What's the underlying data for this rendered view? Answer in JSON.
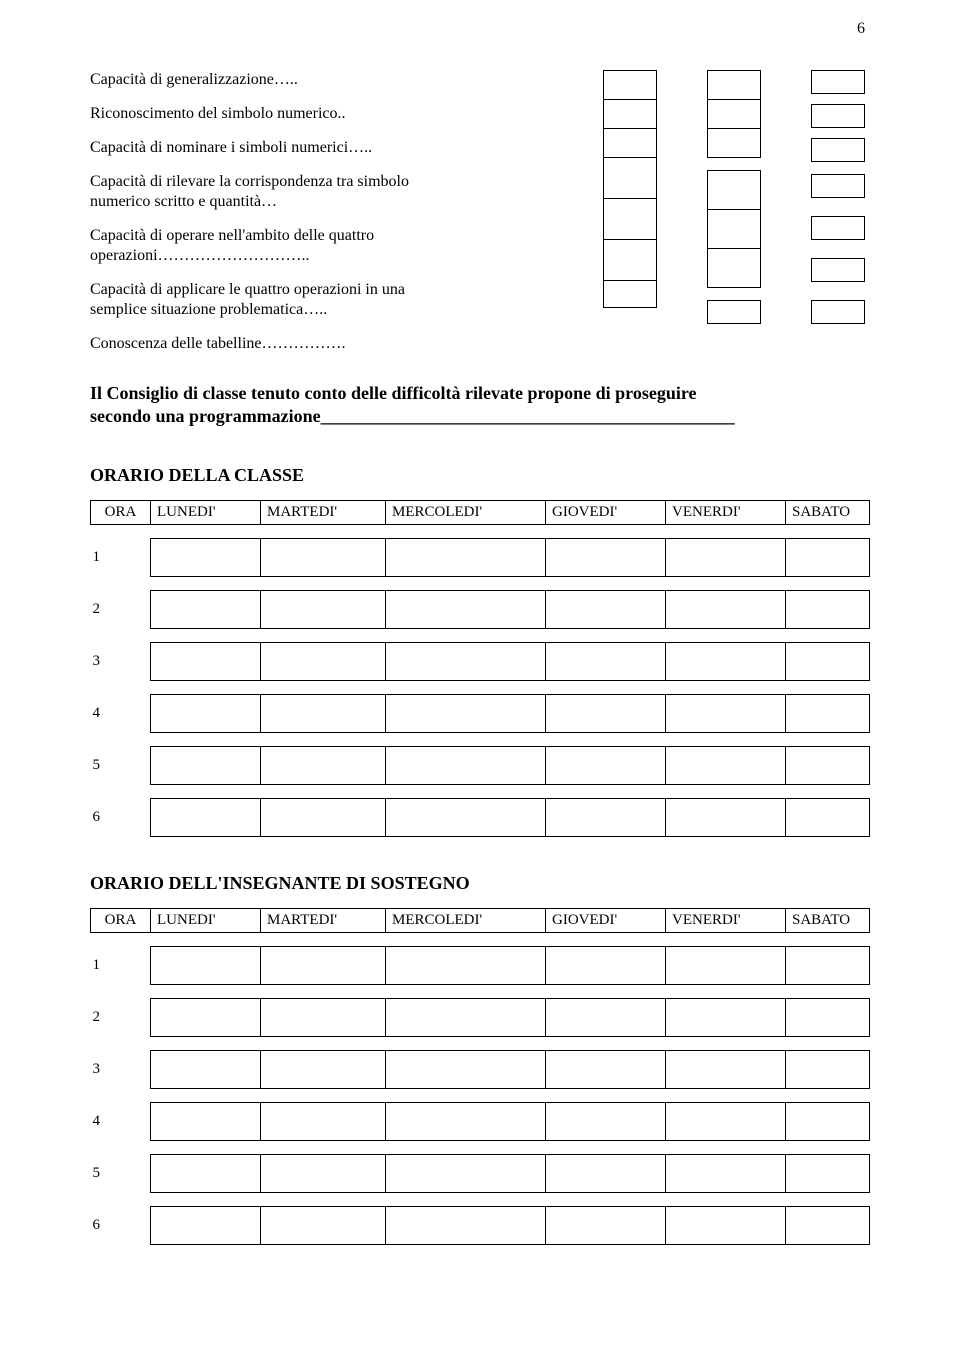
{
  "page_number": "6",
  "assessment": {
    "items": [
      "Capacità di generalizzazione…..",
      "Riconoscimento del simbolo numerico..",
      "Capacità di nominare i simboli numerici…..",
      "Capacità di rilevare la corrispondenza tra simbolo numerico scritto e quantità…",
      "Capacità di operare nell'ambito delle quattro operazioni………………………..",
      "Capacità di applicare le quattro operazioni in una semplice situazione problematica…..",
      "Conoscenza delle tabelline……………."
    ]
  },
  "council_text_line1": "Il Consiglio di classe tenuto conto delle difficoltà rilevate propone di proseguire",
  "council_text_line2_prefix": "secondo una programmazione",
  "schedule1": {
    "title": "ORARIO DELLA CLASSE",
    "headers": [
      "ORA",
      "LUNEDI'",
      "MARTEDI'",
      "MERCOLEDI'",
      "GIOVEDI'",
      "VENERDI'",
      "SABATO"
    ],
    "rows": [
      "1",
      "2",
      "3",
      "4",
      "5",
      "6"
    ]
  },
  "schedule2": {
    "title": "ORARIO DELL'INSEGNANTE DI SOSTEGNO",
    "headers": [
      "ORA",
      "LUNEDI'",
      "MARTEDI'",
      "MERCOLEDI'",
      "GIOVEDI'",
      "VENERDI'",
      "SABATO"
    ],
    "rows": [
      "1",
      "2",
      "3",
      "4",
      "5",
      "6"
    ]
  }
}
